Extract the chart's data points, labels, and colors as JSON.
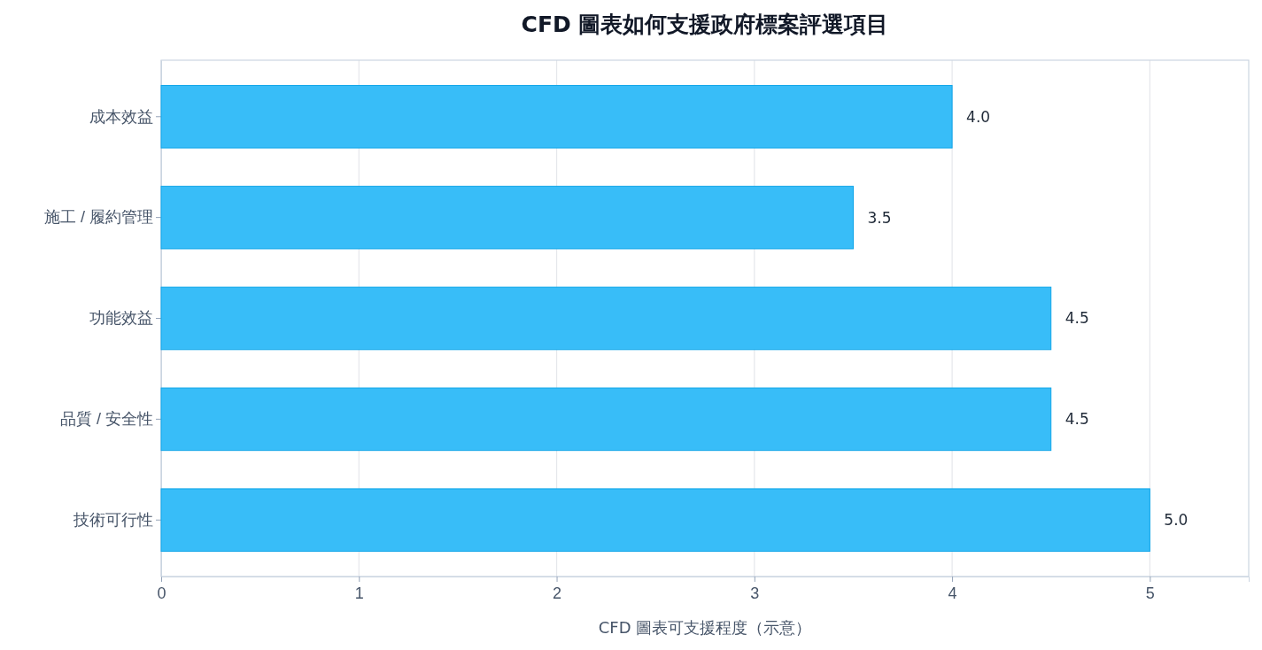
{
  "chart_data": {
    "type": "bar",
    "orientation": "horizontal",
    "title": "CFD 圖表如何支援政府標案評選項目",
    "xlabel": "CFD 圖表可支援程度（示意）",
    "categories": [
      "成本效益",
      "施工 / 履約管理",
      "功能效益",
      "品質 / 安全性",
      "技術可行性"
    ],
    "values": [
      4.0,
      3.5,
      4.5,
      4.5,
      5.0
    ],
    "value_labels": [
      "4.0",
      "3.5",
      "4.5",
      "4.5",
      "5.0"
    ],
    "color": "#38bdf8",
    "xlim": [
      0,
      5.5
    ],
    "xticks": [
      0,
      1,
      2,
      3,
      4,
      5
    ],
    "grid": "x"
  }
}
